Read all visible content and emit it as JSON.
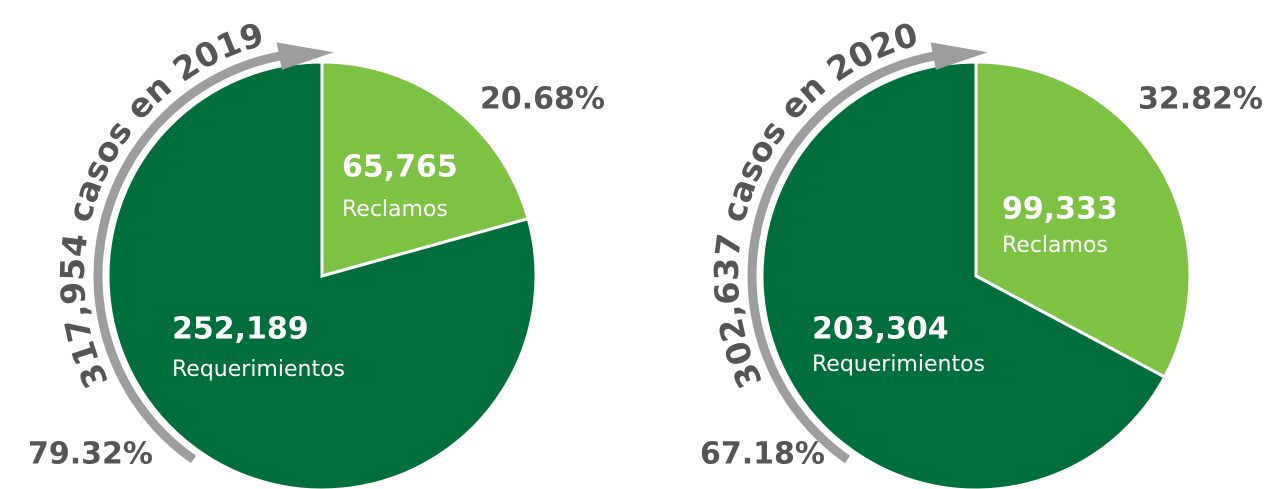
{
  "chart_data": [
    {
      "type": "pie",
      "title": "317,954 casos en 2019",
      "categories": [
        "Reclamos",
        "Requerimientos"
      ],
      "values": [
        65765,
        252189
      ],
      "value_labels": [
        "65,765",
        "252,189"
      ],
      "percent_labels": [
        "20.68%",
        "79.32%"
      ],
      "colors": [
        "#7dc242",
        "#006f3c"
      ]
    },
    {
      "type": "pie",
      "title": "302,637 casos en 2020",
      "categories": [
        "Reclamos",
        "Requerimientos"
      ],
      "values": [
        99333,
        203304
      ],
      "value_labels": [
        "99,333",
        "203,304"
      ],
      "percent_labels": [
        "32.82%",
        "67.18%"
      ],
      "colors": [
        "#7dc242",
        "#006f3c"
      ]
    }
  ]
}
